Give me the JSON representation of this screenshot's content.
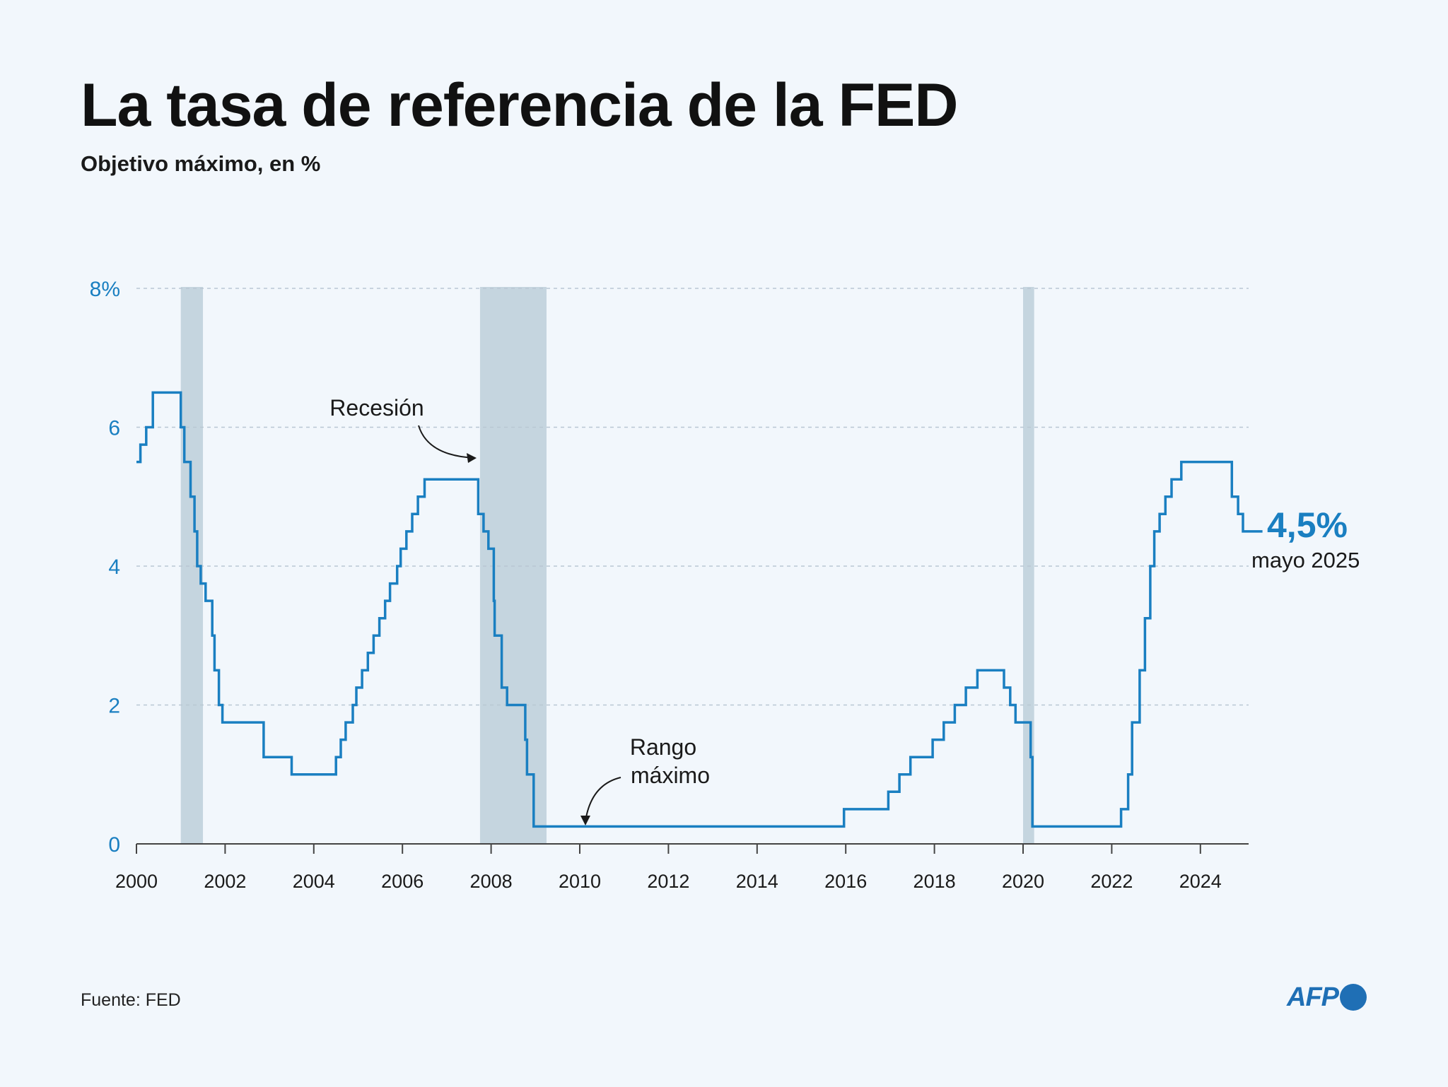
{
  "title": "La tasa de referencia de la FED",
  "subtitle": "Objetivo máximo, en %",
  "source": "Fuente: FED",
  "logo": {
    "text": "AFP",
    "icon": "afp-dot-icon"
  },
  "colors": {
    "line": "#1a7fc1",
    "recession": "#c5d5df",
    "accent": "#1a7fc1",
    "background": "#f2f7fc"
  },
  "chart_data": {
    "type": "line",
    "step": true,
    "xlim": [
      2000,
      2025.4
    ],
    "ylim": [
      0,
      8
    ],
    "y_ticks": [
      {
        "value": 0,
        "label": "0"
      },
      {
        "value": 2,
        "label": "2"
      },
      {
        "value": 4,
        "label": "4"
      },
      {
        "value": 6,
        "label": "6"
      },
      {
        "value": 8,
        "label": "8%"
      }
    ],
    "x_ticks": [
      {
        "value": 2000,
        "label": "2000"
      },
      {
        "value": 2002,
        "label": "2002"
      },
      {
        "value": 2004,
        "label": "2004"
      },
      {
        "value": 2006,
        "label": "2006"
      },
      {
        "value": 2008,
        "label": "2008"
      },
      {
        "value": 2010,
        "label": "2010"
      },
      {
        "value": 2012,
        "label": "2012"
      },
      {
        "value": 2014,
        "label": "2014"
      },
      {
        "value": 2016,
        "label": "2016"
      },
      {
        "value": 2018,
        "label": "2018"
      },
      {
        "value": 2020,
        "label": "2020"
      },
      {
        "value": 2022,
        "label": "2022"
      },
      {
        "value": 2024,
        "label": "2024"
      }
    ],
    "grid": true,
    "recessions": [
      {
        "start": 2001.0,
        "end": 2001.5
      },
      {
        "start": 2007.75,
        "end": 2009.25
      },
      {
        "start": 2020.0,
        "end": 2020.25
      }
    ],
    "series": [
      {
        "x": [
          2000.0,
          2000.09,
          2000.22,
          2000.37,
          2001.0,
          2001.08,
          2001.22,
          2001.31,
          2001.37,
          2001.45,
          2001.56,
          2001.71,
          2001.76,
          2001.86,
          2001.94,
          2002.87,
          2003.5,
          2004.5,
          2004.61,
          2004.72,
          2004.88,
          2004.96,
          2005.09,
          2005.22,
          2005.35,
          2005.48,
          2005.61,
          2005.72,
          2005.88,
          2005.96,
          2006.09,
          2006.22,
          2006.35,
          2006.5,
          2007.71,
          2007.83,
          2007.94,
          2008.06,
          2008.08,
          2008.24,
          2008.36,
          2008.77,
          2008.81,
          2008.96,
          2015.96,
          2016.96,
          2017.21,
          2017.46,
          2017.96,
          2018.21,
          2018.46,
          2018.71,
          2018.97,
          2019.57,
          2019.71,
          2019.83,
          2020.17,
          2020.21,
          2022.21,
          2022.37,
          2022.46,
          2022.63,
          2022.75,
          2022.87,
          2022.96,
          2023.08,
          2023.21,
          2023.35,
          2023.57,
          2024.71,
          2024.85,
          2024.96,
          2025.4
        ],
        "values": [
          5.5,
          5.75,
          6.0,
          6.5,
          6.0,
          5.5,
          5.0,
          4.5,
          4.0,
          3.75,
          3.5,
          3.0,
          2.5,
          2.0,
          1.75,
          1.25,
          1.0,
          1.25,
          1.5,
          1.75,
          2.0,
          2.25,
          2.5,
          2.75,
          3.0,
          3.25,
          3.5,
          3.75,
          4.0,
          4.25,
          4.5,
          4.75,
          5.0,
          5.25,
          4.75,
          4.5,
          4.25,
          3.5,
          3.0,
          2.25,
          2.0,
          1.5,
          1.0,
          0.25,
          0.5,
          0.75,
          1.0,
          1.25,
          1.5,
          1.75,
          2.0,
          2.25,
          2.5,
          2.25,
          2.0,
          1.75,
          1.25,
          0.25,
          0.5,
          1.0,
          1.75,
          2.5,
          3.25,
          4.0,
          4.5,
          4.75,
          5.0,
          5.25,
          5.5,
          5.0,
          4.75,
          4.5,
          4.5
        ]
      }
    ],
    "annotations": [
      {
        "id": "recesion",
        "text": "Recesión"
      },
      {
        "id": "rango",
        "lines": [
          "Rango",
          "máximo"
        ]
      }
    ],
    "end_label": {
      "value_text": "4,5%",
      "date_text": "mayo 2025"
    }
  }
}
